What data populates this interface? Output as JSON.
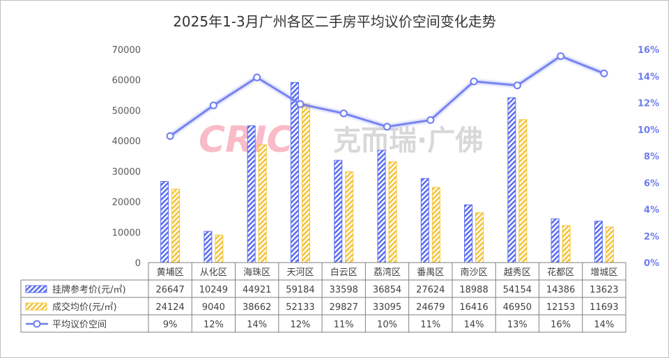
{
  "chart_data": {
    "type": "bar",
    "title": "2025年1-3月广州各区二手房平均议价空间变化走势",
    "categories": [
      "黄埔区",
      "从化区",
      "海珠区",
      "天河区",
      "白云区",
      "荔湾区",
      "番禺区",
      "南沙区",
      "越秀区",
      "花都区",
      "增城区"
    ],
    "series": [
      {
        "name": "挂牌参考价(元/㎡)",
        "axis": "left",
        "kind": "bar",
        "color": "#5b6ef0",
        "values": [
          26647,
          10249,
          44921,
          59184,
          33598,
          36854,
          27624,
          18988,
          54154,
          14386,
          13623
        ]
      },
      {
        "name": "成交均价(元/㎡)",
        "axis": "left",
        "kind": "bar",
        "color": "#f5c43a",
        "values": [
          24124,
          9040,
          38662,
          52133,
          29827,
          33095,
          24679,
          16416,
          46950,
          12153,
          11693
        ]
      },
      {
        "name": "平均议价空间",
        "axis": "right",
        "kind": "line",
        "color": "#6f7df0",
        "values": [
          9.5,
          11.8,
          13.9,
          11.9,
          11.2,
          10.2,
          10.7,
          13.6,
          13.3,
          15.5,
          14.2
        ],
        "labels": [
          "9%",
          "12%",
          "14%",
          "12%",
          "11%",
          "10%",
          "11%",
          "14%",
          "13%",
          "16%",
          "14%"
        ]
      }
    ],
    "y_left": {
      "ylim": [
        0,
        70000
      ],
      "ticks": [
        "0",
        "10000",
        "20000",
        "30000",
        "40000",
        "50000",
        "60000",
        "70000"
      ]
    },
    "y_right": {
      "ylim": [
        0,
        16
      ],
      "ticks": [
        "0%",
        "2%",
        "4%",
        "6%",
        "8%",
        "10%",
        "12%",
        "14%",
        "16%"
      ]
    },
    "grid": false,
    "legend": "data-table-below"
  },
  "watermark": {
    "logo": "CRIC",
    "text": "克而瑞·广佛"
  },
  "colors": {
    "bar1": "#5b6ef0",
    "bar2": "#f5c43a",
    "line": "#6f7df0",
    "axis_right": "#6f7df0"
  }
}
